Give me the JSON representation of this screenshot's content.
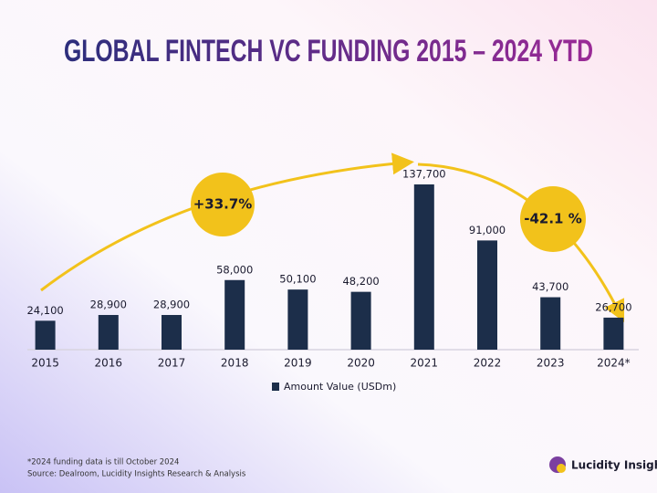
{
  "chart_data": {
    "type": "bar",
    "title": "GLOBAL FINTECH VC FUNDING 2015 – 2024 YTD",
    "categories": [
      "2015",
      "2016",
      "2017",
      "2018",
      "2019",
      "2020",
      "2021",
      "2022",
      "2023",
      "2024*"
    ],
    "series": [
      {
        "name": "Amount Value (USDm)",
        "color": "#1c2e4a",
        "values": [
          24100,
          28900,
          28900,
          58000,
          50100,
          48200,
          137700,
          91000,
          43700,
          26700
        ],
        "value_labels": [
          "24,100",
          "28,900",
          "28,900",
          "58,000",
          "50,100",
          "48,200",
          "137,700",
          "91,000",
          "43,700",
          "26,700"
        ]
      }
    ],
    "annotations": [
      "+33.7%",
      "-42.1 %"
    ],
    "footnotes": [
      "*2024 funding data is till October 2024",
      "Source: Dealroom, Lucidity Insights Research & Analysis"
    ],
    "brand": "Lucidity Insights"
  }
}
